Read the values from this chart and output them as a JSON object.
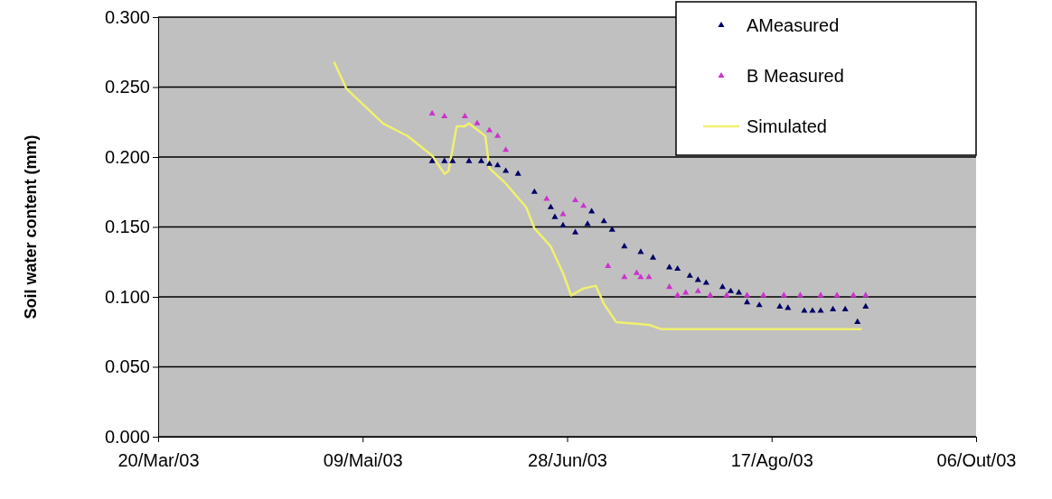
{
  "chart_data": {
    "type": "scatter",
    "ylabel": "Soil water content (mm)",
    "xlim": [
      "2003-03-20",
      "2003-10-06"
    ],
    "xticks": [
      {
        "value": "2003-03-20",
        "label": "20/Mar/03"
      },
      {
        "value": "2003-05-09",
        "label": "09/Mai/03"
      },
      {
        "value": "2003-06-28",
        "label": "28/Jun/03"
      },
      {
        "value": "2003-08-17",
        "label": "17/Ago/03"
      },
      {
        "value": "2003-10-06",
        "label": "06/Out/03"
      }
    ],
    "ylim": [
      0,
      0.3
    ],
    "yticks": [
      {
        "value": 0,
        "label": "0.000"
      },
      {
        "value": 0.05,
        "label": "0.050"
      },
      {
        "value": 0.1,
        "label": "0.100"
      },
      {
        "value": 0.15,
        "label": "0.150"
      },
      {
        "value": 0.2,
        "label": "0.200"
      },
      {
        "value": 0.25,
        "label": "0.250"
      },
      {
        "value": 0.3,
        "label": "0.300"
      }
    ],
    "grid": "y",
    "legend": "top right",
    "marker": "triangle",
    "series": [
      {
        "name": "AMeasured",
        "color": "#000066",
        "x": [
          "2003-05-26",
          "2003-05-29",
          "2003-05-31",
          "2003-06-04",
          "2003-06-07",
          "2003-06-09",
          "2003-06-11",
          "2003-06-13",
          "2003-06-16",
          "2003-06-20",
          "2003-06-24",
          "2003-06-25",
          "2003-06-27",
          "2003-06-30",
          "2003-07-03",
          "2003-07-04",
          "2003-07-07",
          "2003-07-09",
          "2003-07-12",
          "2003-07-16",
          "2003-07-19",
          "2003-07-23",
          "2003-07-25",
          "2003-07-28",
          "2003-07-30",
          "2003-08-01",
          "2003-08-05",
          "2003-08-07",
          "2003-08-09",
          "2003-08-11",
          "2003-08-14",
          "2003-08-19",
          "2003-08-21",
          "2003-08-25",
          "2003-08-27",
          "2003-08-29",
          "2003-09-01",
          "2003-09-04",
          "2003-09-07",
          "2003-09-09"
        ],
        "values": [
          0.197,
          0.197,
          0.197,
          0.197,
          0.197,
          0.195,
          0.194,
          0.19,
          0.188,
          0.175,
          0.164,
          0.157,
          0.151,
          0.146,
          0.152,
          0.161,
          0.154,
          0.148,
          0.136,
          0.132,
          0.128,
          0.121,
          0.12,
          0.115,
          0.112,
          0.11,
          0.107,
          0.104,
          0.103,
          0.096,
          0.094,
          0.093,
          0.092,
          0.09,
          0.09,
          0.09,
          0.091,
          0.091,
          0.082,
          0.093
        ]
      },
      {
        "name": "B Measured",
        "color": "#cc33cc",
        "x": [
          "2003-05-26",
          "2003-05-29",
          "2003-06-03",
          "2003-06-06",
          "2003-06-09",
          "2003-06-11",
          "2003-06-13",
          "2003-06-23",
          "2003-06-27",
          "2003-06-30",
          "2003-07-02",
          "2003-07-08",
          "2003-07-12",
          "2003-07-15",
          "2003-07-16",
          "2003-07-18",
          "2003-07-23",
          "2003-07-25",
          "2003-07-27",
          "2003-07-30",
          "2003-08-02",
          "2003-08-06",
          "2003-08-11",
          "2003-08-15",
          "2003-08-20",
          "2003-08-24",
          "2003-08-29",
          "2003-09-02",
          "2003-09-06",
          "2003-09-09"
        ],
        "values": [
          0.231,
          0.229,
          0.229,
          0.224,
          0.219,
          0.215,
          0.205,
          0.17,
          0.159,
          0.169,
          0.165,
          0.122,
          0.114,
          0.117,
          0.114,
          0.114,
          0.107,
          0.101,
          0.103,
          0.104,
          0.101,
          0.101,
          0.101,
          0.101,
          0.101,
          0.101,
          0.101,
          0.101,
          0.101,
          0.101
        ]
      },
      {
        "name": "Simulated",
        "type": "line",
        "marker": "none",
        "color": "#f0f070",
        "x": [
          "2003-05-02",
          "2003-05-05",
          "2003-05-14",
          "2003-05-20",
          "2003-05-26",
          "2003-05-29",
          "2003-05-30",
          "2003-06-01",
          "2003-06-03",
          "2003-06-04",
          "2003-06-08",
          "2003-06-09",
          "2003-06-13",
          "2003-06-18",
          "2003-06-20",
          "2003-06-24",
          "2003-06-27",
          "2003-06-29",
          "2003-07-02",
          "2003-07-05",
          "2003-07-07",
          "2003-07-10",
          "2003-07-18",
          "2003-07-21",
          "2003-09-08"
        ],
        "values": [
          0.268,
          0.249,
          0.224,
          0.215,
          0.201,
          0.188,
          0.19,
          0.222,
          0.222,
          0.224,
          0.215,
          0.192,
          0.181,
          0.164,
          0.149,
          0.136,
          0.117,
          0.101,
          0.106,
          0.108,
          0.095,
          0.082,
          0.08,
          0.077,
          0.077
        ]
      }
    ]
  }
}
